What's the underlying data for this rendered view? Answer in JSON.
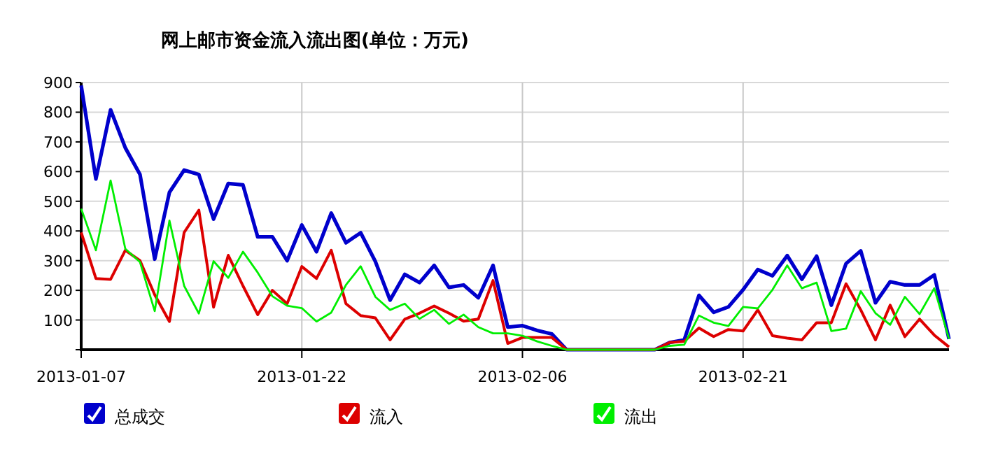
{
  "chart_data": {
    "type": "line",
    "title": "网上邮市资金流入流出图(单位：万元)",
    "x": [
      "2013-01-07",
      "2013-01-08",
      "2013-01-09",
      "2013-01-10",
      "2013-01-11",
      "2013-01-12",
      "2013-01-13",
      "2013-01-14",
      "2013-01-15",
      "2013-01-16",
      "2013-01-17",
      "2013-01-18",
      "2013-01-19",
      "2013-01-20",
      "2013-01-21",
      "2013-01-22",
      "2013-01-23",
      "2013-01-24",
      "2013-01-25",
      "2013-01-26",
      "2013-01-27",
      "2013-01-28",
      "2013-01-29",
      "2013-01-30",
      "2013-01-31",
      "2013-02-01",
      "2013-02-02",
      "2013-02-03",
      "2013-02-04",
      "2013-02-05",
      "2013-02-06",
      "2013-02-07",
      "2013-02-08",
      "2013-02-09",
      "2013-02-10",
      "2013-02-11",
      "2013-02-12",
      "2013-02-13",
      "2013-02-14",
      "2013-02-15",
      "2013-02-16",
      "2013-02-17",
      "2013-02-18",
      "2013-02-19",
      "2013-02-20",
      "2013-02-21",
      "2013-02-22",
      "2013-02-23",
      "2013-02-24",
      "2013-02-25",
      "2013-02-26",
      "2013-02-27",
      "2013-02-28",
      "2013-03-01",
      "2013-03-02",
      "2013-03-03",
      "2013-03-04",
      "2013-03-05",
      "2013-03-06",
      "2013-03-07"
    ],
    "xlim": [
      "2013-01-07",
      "2013-03-07"
    ],
    "xticks": [
      "2013-01-07",
      "2013-01-22",
      "2013-02-06",
      "2013-02-21"
    ],
    "ylim": [
      0,
      900
    ],
    "yticks": [
      {
        "value": 0,
        "label": null
      },
      100,
      200,
      300,
      400,
      500,
      600,
      700,
      800,
      900
    ],
    "grid": true,
    "legend": "bottom",
    "series": [
      {
        "name": "总成交",
        "color": "#0000cc",
        "values": [
          890,
          575,
          808,
          680,
          590,
          305,
          530,
          605,
          590,
          440,
          560,
          555,
          380,
          380,
          300,
          420,
          330,
          460,
          360,
          394,
          297,
          167,
          254,
          226,
          284,
          210,
          218,
          175,
          284,
          76,
          81,
          65,
          53,
          0,
          0,
          0,
          0,
          0,
          0,
          0,
          24,
          33,
          183,
          126,
          144,
          202,
          270,
          249,
          317,
          237,
          315,
          150,
          290,
          333,
          158,
          229,
          218,
          218,
          252,
          36
        ]
      },
      {
        "name": "流入",
        "color": "#dd0000",
        "values": [
          395,
          240,
          237,
          335,
          300,
          185,
          95,
          395,
          470,
          143,
          318,
          215,
          118,
          200,
          155,
          280,
          240,
          335,
          155,
          115,
          107,
          33,
          103,
          123,
          147,
          123,
          96,
          103,
          233,
          21,
          41,
          41,
          41,
          0,
          0,
          0,
          0,
          0,
          0,
          0,
          24,
          28,
          73,
          44,
          68,
          63,
          134,
          47,
          39,
          33,
          91,
          91,
          222,
          134,
          33,
          150,
          44,
          103,
          49,
          9
        ]
      },
      {
        "name": "流出",
        "color": "#00ee00",
        "values": [
          475,
          335,
          570,
          340,
          295,
          130,
          435,
          215,
          122,
          298,
          242,
          330,
          260,
          180,
          148,
          140,
          95,
          125,
          218,
          281,
          178,
          134,
          155,
          104,
          134,
          87,
          118,
          76,
          55,
          55,
          47,
          28,
          13,
          0,
          0,
          0,
          0,
          0,
          0,
          0,
          13,
          17,
          115,
          91,
          80,
          144,
          139,
          202,
          284,
          207,
          226,
          63,
          71,
          197,
          123,
          84,
          178,
          120,
          207,
          36
        ]
      }
    ]
  }
}
